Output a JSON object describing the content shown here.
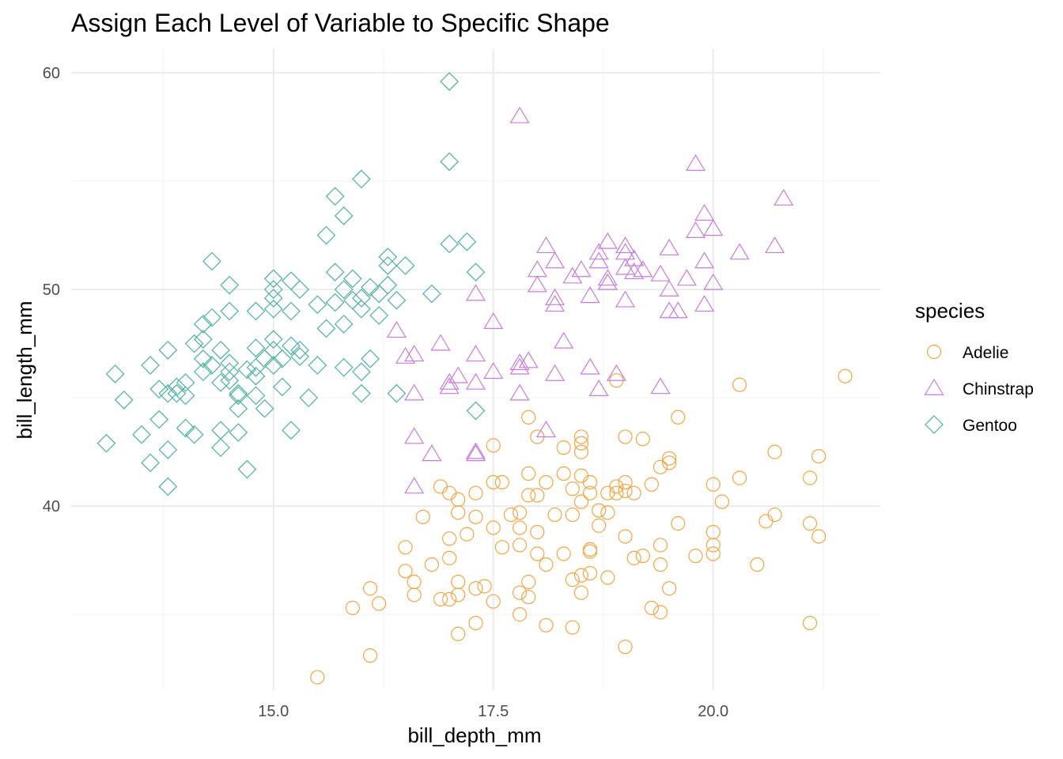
{
  "chart_data": {
    "type": "scatter",
    "title": "Assign Each Level of Variable to Specific Shape",
    "xlabel": "bill_depth_mm",
    "ylabel": "bill_length_mm",
    "xlim": [
      12.7,
      21.9
    ],
    "ylim": [
      31.5,
      61.1
    ],
    "x_ticks": [
      15.0,
      17.5,
      20.0
    ],
    "x_tick_labels": [
      "15.0",
      "17.5",
      "20.0"
    ],
    "y_ticks": [
      40,
      50,
      60
    ],
    "y_tick_labels": [
      "40",
      "50",
      "60"
    ],
    "grid": true,
    "legend": {
      "title": "species",
      "position": "right"
    },
    "series": [
      {
        "name": "Adelie",
        "shape": "circle",
        "color": "#F5A442",
        "points": [
          [
            15.5,
            32.1
          ],
          [
            16.1,
            33.1
          ],
          [
            17.1,
            34.1
          ],
          [
            17.3,
            34.6
          ],
          [
            18.1,
            34.5
          ],
          [
            18.4,
            34.4
          ],
          [
            19.0,
            33.5
          ],
          [
            19.4,
            35.1
          ],
          [
            21.1,
            34.6
          ],
          [
            15.9,
            35.3
          ],
          [
            16.2,
            35.5
          ],
          [
            16.1,
            36.2
          ],
          [
            16.6,
            35.9
          ],
          [
            16.6,
            36.5
          ],
          [
            16.9,
            35.7
          ],
          [
            17.0,
            35.7
          ],
          [
            17.1,
            35.9
          ],
          [
            17.3,
            36.2
          ],
          [
            17.1,
            36.5
          ],
          [
            17.4,
            36.3
          ],
          [
            17.5,
            35.6
          ],
          [
            17.8,
            36.0
          ],
          [
            17.8,
            35.0
          ],
          [
            17.9,
            35.8
          ],
          [
            17.9,
            36.5
          ],
          [
            18.1,
            37.3
          ],
          [
            18.4,
            36.6
          ],
          [
            18.5,
            36.0
          ],
          [
            18.5,
            36.8
          ],
          [
            18.6,
            36.9
          ],
          [
            18.8,
            36.7
          ],
          [
            19.2,
            37.7
          ],
          [
            19.3,
            35.3
          ],
          [
            19.4,
            37.3
          ],
          [
            19.5,
            36.2
          ],
          [
            16.5,
            37.0
          ],
          [
            16.8,
            37.3
          ],
          [
            16.5,
            38.1
          ],
          [
            17.0,
            37.6
          ],
          [
            17.0,
            38.5
          ],
          [
            17.2,
            38.7
          ],
          [
            17.5,
            39.0
          ],
          [
            17.6,
            38.1
          ],
          [
            17.8,
            39.0
          ],
          [
            17.8,
            38.2
          ],
          [
            18.0,
            37.8
          ],
          [
            18.0,
            38.8
          ],
          [
            18.3,
            37.8
          ],
          [
            18.6,
            37.9
          ],
          [
            18.6,
            38.0
          ],
          [
            18.7,
            39.1
          ],
          [
            19.0,
            38.6
          ],
          [
            19.1,
            37.6
          ],
          [
            19.4,
            38.2
          ],
          [
            19.6,
            39.2
          ],
          [
            19.8,
            37.7
          ],
          [
            20.0,
            37.8
          ],
          [
            20.0,
            38.2
          ],
          [
            20.0,
            38.8
          ],
          [
            20.5,
            37.3
          ],
          [
            20.6,
            39.3
          ],
          [
            20.7,
            39.6
          ],
          [
            21.1,
            39.2
          ],
          [
            21.2,
            38.6
          ],
          [
            16.7,
            39.5
          ],
          [
            16.9,
            40.9
          ],
          [
            17.0,
            40.6
          ],
          [
            17.1,
            40.3
          ],
          [
            17.1,
            39.7
          ],
          [
            17.3,
            40.6
          ],
          [
            17.3,
            39.5
          ],
          [
            17.5,
            41.1
          ],
          [
            17.6,
            41.1
          ],
          [
            17.7,
            39.6
          ],
          [
            17.8,
            39.7
          ],
          [
            17.9,
            40.5
          ],
          [
            17.9,
            41.5
          ],
          [
            18.0,
            40.5
          ],
          [
            18.1,
            41.1
          ],
          [
            18.2,
            39.6
          ],
          [
            18.3,
            41.5
          ],
          [
            18.4,
            40.8
          ],
          [
            18.4,
            39.6
          ],
          [
            18.5,
            41.4
          ],
          [
            18.5,
            40.2
          ],
          [
            18.6,
            41.1
          ],
          [
            18.6,
            40.6
          ],
          [
            18.7,
            39.8
          ],
          [
            18.8,
            40.6
          ],
          [
            18.8,
            39.7
          ],
          [
            18.9,
            40.9
          ],
          [
            18.9,
            40.6
          ],
          [
            19.0,
            40.7
          ],
          [
            19.0,
            41.1
          ],
          [
            19.1,
            40.6
          ],
          [
            19.3,
            41.0
          ],
          [
            19.4,
            41.8
          ],
          [
            19.5,
            42.0
          ],
          [
            19.5,
            42.2
          ],
          [
            20.0,
            41.0
          ],
          [
            20.1,
            40.2
          ],
          [
            20.3,
            41.3
          ],
          [
            20.7,
            42.5
          ],
          [
            21.1,
            41.3
          ],
          [
            21.2,
            42.3
          ],
          [
            17.5,
            42.8
          ],
          [
            17.9,
            44.1
          ],
          [
            18.0,
            43.2
          ],
          [
            18.3,
            42.7
          ],
          [
            18.5,
            42.5
          ],
          [
            18.5,
            42.9
          ],
          [
            18.5,
            43.2
          ],
          [
            18.9,
            45.8
          ],
          [
            19.0,
            43.2
          ],
          [
            19.2,
            43.1
          ],
          [
            19.6,
            44.1
          ],
          [
            20.3,
            45.6
          ],
          [
            21.5,
            46.0
          ]
        ]
      },
      {
        "name": "Chinstrap",
        "shape": "triangle",
        "color": "#C77CDE",
        "points": [
          [
            16.6,
            40.9
          ],
          [
            16.6,
            43.2
          ],
          [
            16.8,
            42.4
          ],
          [
            17.3,
            42.4
          ],
          [
            17.3,
            42.5
          ],
          [
            16.5,
            46.9
          ],
          [
            16.6,
            47.0
          ],
          [
            16.6,
            45.2
          ],
          [
            16.4,
            48.1
          ],
          [
            16.9,
            47.5
          ],
          [
            17.0,
            45.5
          ],
          [
            17.0,
            45.7
          ],
          [
            17.1,
            46.0
          ],
          [
            17.3,
            45.7
          ],
          [
            17.3,
            47.0
          ],
          [
            17.5,
            46.2
          ],
          [
            17.5,
            48.5
          ],
          [
            17.3,
            49.8
          ],
          [
            17.8,
            46.4
          ],
          [
            17.8,
            46.6
          ],
          [
            17.9,
            46.7
          ],
          [
            17.8,
            45.2
          ],
          [
            18.1,
            43.5
          ],
          [
            18.2,
            46.1
          ],
          [
            18.2,
            49.3
          ],
          [
            18.2,
            49.6
          ],
          [
            18.3,
            47.6
          ],
          [
            17.8,
            58.0
          ],
          [
            18.0,
            50.2
          ],
          [
            18.0,
            50.9
          ],
          [
            18.1,
            52.0
          ],
          [
            18.2,
            51.3
          ],
          [
            18.4,
            50.6
          ],
          [
            18.5,
            50.9
          ],
          [
            18.6,
            49.7
          ],
          [
            18.6,
            46.4
          ],
          [
            18.7,
            45.4
          ],
          [
            18.7,
            51.3
          ],
          [
            18.7,
            51.7
          ],
          [
            18.8,
            52.2
          ],
          [
            18.8,
            50.3
          ],
          [
            18.8,
            50.5
          ],
          [
            18.9,
            46.1
          ],
          [
            19.0,
            49.5
          ],
          [
            19.0,
            51.0
          ],
          [
            19.0,
            51.7
          ],
          [
            19.0,
            52.0
          ],
          [
            19.1,
            50.8
          ],
          [
            19.1,
            51.4
          ],
          [
            19.2,
            50.9
          ],
          [
            19.4,
            45.5
          ],
          [
            19.4,
            50.7
          ],
          [
            19.5,
            49.0
          ],
          [
            19.5,
            50.0
          ],
          [
            19.5,
            51.9
          ],
          [
            19.6,
            49.0
          ],
          [
            19.7,
            50.5
          ],
          [
            19.8,
            52.7
          ],
          [
            19.8,
            55.8
          ],
          [
            19.9,
            51.3
          ],
          [
            19.9,
            53.5
          ],
          [
            19.9,
            49.3
          ],
          [
            20.0,
            52.8
          ],
          [
            20.0,
            50.3
          ],
          [
            20.3,
            51.7
          ],
          [
            20.7,
            52.0
          ],
          [
            20.8,
            54.2
          ]
        ]
      },
      {
        "name": "Gentoo",
        "shape": "diamond",
        "color": "#4EB0A2",
        "points": [
          [
            13.1,
            42.9
          ],
          [
            13.2,
            46.1
          ],
          [
            13.3,
            44.9
          ],
          [
            13.5,
            43.3
          ],
          [
            13.6,
            42.0
          ],
          [
            13.6,
            46.5
          ],
          [
            13.7,
            44.0
          ],
          [
            13.7,
            45.4
          ],
          [
            13.8,
            40.9
          ],
          [
            13.8,
            42.6
          ],
          [
            13.8,
            45.2
          ],
          [
            13.8,
            47.2
          ],
          [
            13.9,
            45.5
          ],
          [
            13.9,
            45.2
          ],
          [
            14.0,
            45.1
          ],
          [
            14.0,
            43.6
          ],
          [
            14.0,
            45.7
          ],
          [
            14.1,
            43.3
          ],
          [
            14.1,
            47.5
          ],
          [
            14.2,
            46.2
          ],
          [
            14.2,
            46.8
          ],
          [
            14.2,
            48.4
          ],
          [
            14.3,
            48.7
          ],
          [
            14.3,
            46.5
          ],
          [
            14.4,
            47.2
          ],
          [
            14.4,
            43.5
          ],
          [
            14.4,
            42.7
          ],
          [
            14.5,
            45.8
          ],
          [
            14.5,
            46.6
          ],
          [
            14.3,
            51.3
          ],
          [
            14.4,
            45.7
          ],
          [
            14.5,
            46.2
          ],
          [
            14.5,
            50.2
          ],
          [
            14.6,
            45.1
          ],
          [
            14.6,
            45.2
          ],
          [
            14.6,
            43.4
          ],
          [
            14.7,
            46.3
          ],
          [
            14.8,
            45.1
          ],
          [
            14.8,
            46.4
          ],
          [
            14.8,
            47.3
          ],
          [
            14.8,
            46.0
          ],
          [
            14.9,
            46.8
          ],
          [
            15.0,
            46.5
          ],
          [
            15.0,
            47.7
          ],
          [
            15.0,
            49.1
          ],
          [
            15.0,
            49.6
          ],
          [
            15.0,
            50.0
          ],
          [
            15.0,
            50.5
          ],
          [
            15.1,
            45.5
          ],
          [
            15.1,
            46.8
          ],
          [
            15.2,
            43.5
          ],
          [
            15.2,
            47.4
          ],
          [
            15.2,
            49.0
          ],
          [
            15.3,
            46.9
          ],
          [
            15.3,
            47.2
          ],
          [
            15.3,
            50.0
          ],
          [
            15.4,
            45.0
          ],
          [
            15.5,
            49.3
          ],
          [
            15.5,
            46.5
          ],
          [
            15.6,
            48.2
          ],
          [
            15.7,
            49.4
          ],
          [
            15.7,
            50.8
          ],
          [
            15.8,
            46.4
          ],
          [
            15.8,
            48.4
          ],
          [
            15.8,
            50.0
          ],
          [
            15.9,
            49.5
          ],
          [
            15.9,
            50.5
          ],
          [
            16.0,
            46.2
          ],
          [
            16.0,
            45.2
          ],
          [
            16.0,
            49.6
          ],
          [
            16.0,
            49.1
          ],
          [
            16.1,
            46.8
          ],
          [
            16.1,
            50.1
          ],
          [
            16.2,
            49.8
          ],
          [
            16.2,
            48.8
          ],
          [
            16.4,
            45.2
          ],
          [
            16.5,
            51.1
          ],
          [
            16.3,
            51.5
          ],
          [
            16.3,
            50.2
          ],
          [
            16.4,
            49.5
          ],
          [
            14.8,
            49.0
          ],
          [
            14.9,
            44.5
          ],
          [
            15.0,
            47.2
          ],
          [
            15.2,
            50.4
          ],
          [
            15.7,
            54.3
          ],
          [
            15.6,
            52.5
          ],
          [
            15.8,
            53.4
          ],
          [
            16.0,
            55.1
          ],
          [
            16.3,
            51.1
          ],
          [
            16.8,
            49.8
          ],
          [
            17.3,
            44.4
          ],
          [
            17.0,
            59.6
          ],
          [
            17.0,
            55.9
          ],
          [
            17.0,
            52.1
          ],
          [
            17.2,
            52.2
          ],
          [
            17.3,
            50.8
          ],
          [
            14.7,
            41.7
          ],
          [
            14.2,
            47.7
          ],
          [
            14.5,
            49.0
          ],
          [
            14.6,
            44.5
          ]
        ]
      }
    ]
  }
}
